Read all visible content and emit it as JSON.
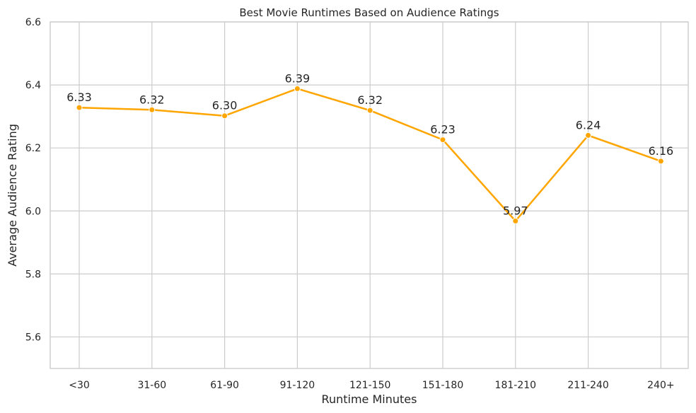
{
  "chart_data": {
    "type": "line",
    "title": "Best Movie Runtimes Based on Audience Ratings",
    "xlabel": "Runtime Minutes",
    "ylabel": "Average Audience Rating",
    "categories": [
      "<30",
      "31-60",
      "61-90",
      "91-120",
      "121-150",
      "151-180",
      "181-210",
      "211-240",
      "240+"
    ],
    "series": [
      {
        "values": [
          6.328,
          6.321,
          6.302,
          6.388,
          6.319,
          6.226,
          5.968,
          6.24,
          6.158
        ],
        "labels": [
          "6.33",
          "6.32",
          "6.30",
          "6.39",
          "6.32",
          "6.23",
          "5.97",
          "6.24",
          "6.16"
        ],
        "color": "#FFA500"
      }
    ],
    "ylim": [
      5.5,
      6.6
    ],
    "yticks": [
      "5.6",
      "5.8",
      "6.0",
      "6.2",
      "6.4",
      "6.6"
    ],
    "grid": true,
    "legend": "none"
  }
}
